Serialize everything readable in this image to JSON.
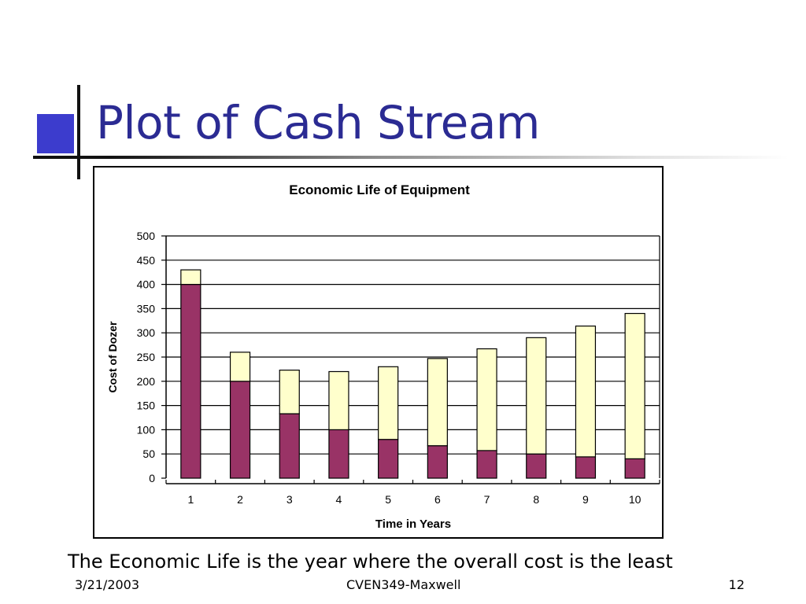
{
  "slide": {
    "title": "Plot of Cash Stream",
    "caption": "The Economic Life is the year where the overall cost is the least",
    "footer": {
      "date": "3/21/2003",
      "course": "CVEN349-Maxwell",
      "page": "12"
    }
  },
  "colors": {
    "title": "#2b2b93",
    "accent_square": "#3c3ccd",
    "series_1": "#993366",
    "series_2": "#ffffcc"
  },
  "chart_data": {
    "type": "bar",
    "stacked": true,
    "title": "Economic Life of Equipment",
    "xlabel": "Time in Years",
    "ylabel": "Cost of Dozer",
    "categories": [
      "1",
      "2",
      "3",
      "4",
      "5",
      "6",
      "7",
      "8",
      "9",
      "10"
    ],
    "series": [
      {
        "values": [
          400,
          200,
          133,
          100,
          80,
          67,
          57,
          50,
          44,
          40
        ],
        "color": "#993366"
      },
      {
        "values": [
          30,
          60,
          90,
          120,
          150,
          180,
          210,
          240,
          270,
          300
        ],
        "color": "#ffffcc"
      }
    ],
    "ylim": [
      0,
      500
    ],
    "yticks": [
      0,
      50,
      100,
      150,
      200,
      250,
      300,
      350,
      400,
      450,
      500
    ],
    "grid": true,
    "legend": "none"
  }
}
